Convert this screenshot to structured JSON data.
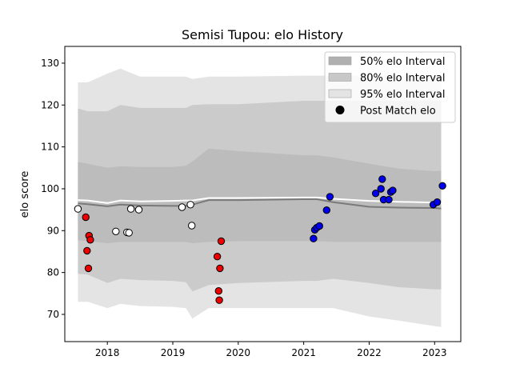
{
  "chart_data": {
    "type": "scatter",
    "title": "Semisi Tupou: elo History",
    "xlabel": "",
    "ylabel": "elo score",
    "xlim": [
      2017.35,
      2023.4
    ],
    "ylim": [
      63.5,
      134
    ],
    "x_ticks": [
      2018,
      2019,
      2020,
      2021,
      2022,
      2023
    ],
    "y_ticks": [
      70,
      80,
      90,
      100,
      110,
      120,
      130
    ],
    "grid": false,
    "legend_position": "top-right",
    "legend": [
      {
        "label": "50% elo Interval",
        "kind": "band",
        "color": "#b0b0b0"
      },
      {
        "label": "80% elo Interval",
        "kind": "band",
        "color": "#c8c8c8"
      },
      {
        "label": "95% elo Interval",
        "kind": "band",
        "color": "#e4e4e4"
      },
      {
        "label": "Post Match elo",
        "kind": "marker",
        "color": "#000000"
      }
    ],
    "series_x": [
      2017.55,
      2017.7,
      2018.0,
      2018.2,
      2018.5,
      2019.0,
      2019.2,
      2019.3,
      2019.55,
      2020.0,
      2021.0,
      2021.2,
      2021.45,
      2022.0,
      2022.45,
      2023.0,
      2023.1
    ],
    "mean_line": [
      96.5,
      96.3,
      95.8,
      96.2,
      96.0,
      95.9,
      95.9,
      96.2,
      97.3,
      97.3,
      97.5,
      97.5,
      96.8,
      95.7,
      95.5,
      95.4,
      95.3
    ],
    "white_line": [
      97.3,
      97.2,
      96.6,
      97.2,
      97.0,
      97.1,
      97.2,
      97.2,
      97.8,
      97.8,
      97.9,
      97.9,
      97.6,
      97.1,
      96.9,
      96.7,
      96.5
    ],
    "band50": {
      "lower": [
        87.7,
        87.5,
        87.0,
        87.3,
        87.3,
        87.3,
        87.3,
        87.0,
        87.3,
        87.5,
        87.5,
        87.5,
        87.3,
        87.3,
        87.3,
        87.3,
        87.3
      ],
      "upper": [
        106.4,
        106.0,
        105.0,
        105.4,
        105.2,
        105.2,
        105.5,
        106.5,
        109.6,
        109.0,
        108.0,
        108.0,
        107.5,
        106.0,
        104.8,
        104.2,
        104.3
      ]
    },
    "band80": {
      "lower": [
        79.7,
        79.5,
        77.5,
        78.5,
        78.2,
        78.0,
        77.7,
        75.5,
        77.0,
        77.5,
        78.0,
        78.0,
        78.5,
        77.5,
        76.5,
        76.0,
        76.0
      ],
      "upper": [
        119.2,
        118.5,
        118.5,
        120.0,
        119.3,
        119.3,
        119.3,
        120.0,
        120.2,
        120.2,
        121.0,
        121.0,
        121.0,
        121.0,
        121.0,
        121.0,
        121.0
      ]
    },
    "band95": {
      "lower": [
        73.0,
        73.0,
        71.5,
        72.5,
        72.0,
        71.8,
        71.5,
        69.0,
        71.5,
        71.5,
        71.5,
        71.5,
        71.5,
        69.5,
        68.5,
        67.2,
        67.0
      ],
      "upper": [
        125.4,
        125.4,
        127.5,
        128.7,
        126.8,
        126.8,
        126.8,
        126.2,
        126.8,
        126.8,
        127.0,
        127.0,
        127.0,
        127.0,
        127.0,
        127.0,
        127.0
      ]
    },
    "points": [
      {
        "x": 2017.55,
        "y": 95.2,
        "color": "#ffffff"
      },
      {
        "x": 2017.67,
        "y": 93.2,
        "color": "#ee0000"
      },
      {
        "x": 2017.69,
        "y": 85.2,
        "color": "#ee0000"
      },
      {
        "x": 2017.71,
        "y": 81.0,
        "color": "#ee0000"
      },
      {
        "x": 2017.72,
        "y": 88.8,
        "color": "#ee0000"
      },
      {
        "x": 2017.74,
        "y": 87.8,
        "color": "#ee0000"
      },
      {
        "x": 2018.13,
        "y": 89.8,
        "color": "#ffffff"
      },
      {
        "x": 2018.3,
        "y": 89.6,
        "color": "#ffffff"
      },
      {
        "x": 2018.33,
        "y": 89.5,
        "color": "#ffffff"
      },
      {
        "x": 2018.36,
        "y": 95.2,
        "color": "#ffffff"
      },
      {
        "x": 2018.48,
        "y": 95.0,
        "color": "#ffffff"
      },
      {
        "x": 2019.14,
        "y": 95.6,
        "color": "#ffffff"
      },
      {
        "x": 2019.27,
        "y": 96.2,
        "color": "#ffffff"
      },
      {
        "x": 2019.29,
        "y": 91.2,
        "color": "#ffffff"
      },
      {
        "x": 2019.68,
        "y": 83.8,
        "color": "#ee0000"
      },
      {
        "x": 2019.7,
        "y": 75.6,
        "color": "#ee0000"
      },
      {
        "x": 2019.71,
        "y": 73.4,
        "color": "#ee0000"
      },
      {
        "x": 2019.72,
        "y": 81.0,
        "color": "#ee0000"
      },
      {
        "x": 2019.74,
        "y": 87.5,
        "color": "#ee0000"
      },
      {
        "x": 2021.15,
        "y": 88.1,
        "color": "#0000ee"
      },
      {
        "x": 2021.17,
        "y": 90.2,
        "color": "#0000ee"
      },
      {
        "x": 2021.2,
        "y": 90.7,
        "color": "#0000ee"
      },
      {
        "x": 2021.24,
        "y": 91.1,
        "color": "#0000ee"
      },
      {
        "x": 2021.35,
        "y": 94.9,
        "color": "#0000ee"
      },
      {
        "x": 2021.4,
        "y": 98.1,
        "color": "#0000ee"
      },
      {
        "x": 2022.1,
        "y": 98.9,
        "color": "#0000ee"
      },
      {
        "x": 2022.18,
        "y": 100.0,
        "color": "#0000ee"
      },
      {
        "x": 2022.2,
        "y": 102.3,
        "color": "#0000ee"
      },
      {
        "x": 2022.22,
        "y": 97.4,
        "color": "#0000ee"
      },
      {
        "x": 2022.3,
        "y": 97.4,
        "color": "#0000ee"
      },
      {
        "x": 2022.33,
        "y": 99.2,
        "color": "#0000ee"
      },
      {
        "x": 2022.36,
        "y": 99.6,
        "color": "#0000ee"
      },
      {
        "x": 2022.98,
        "y": 96.2,
        "color": "#0000ee"
      },
      {
        "x": 2023.04,
        "y": 96.8,
        "color": "#0000ee"
      },
      {
        "x": 2023.12,
        "y": 100.7,
        "color": "#0000ee"
      }
    ]
  }
}
